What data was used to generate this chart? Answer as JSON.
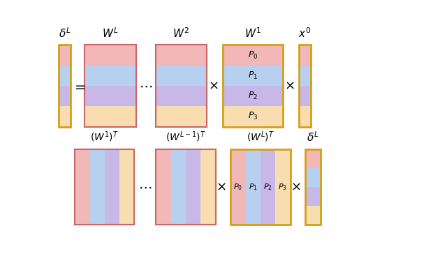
{
  "colors": {
    "pink": "#f2b8b8",
    "blue": "#b8d0f0",
    "purple": "#c8b8e8",
    "peach": "#f8ddb0",
    "gold": "#d4a017",
    "red_border": "#cc6666"
  },
  "partition_labels_h": [
    "$P_0$",
    "$P_1$",
    "$P_2$",
    "$P_3$"
  ],
  "partition_labels_v": [
    "$P_0$",
    "$P_1$",
    "$P_2$",
    "$P_3$"
  ]
}
